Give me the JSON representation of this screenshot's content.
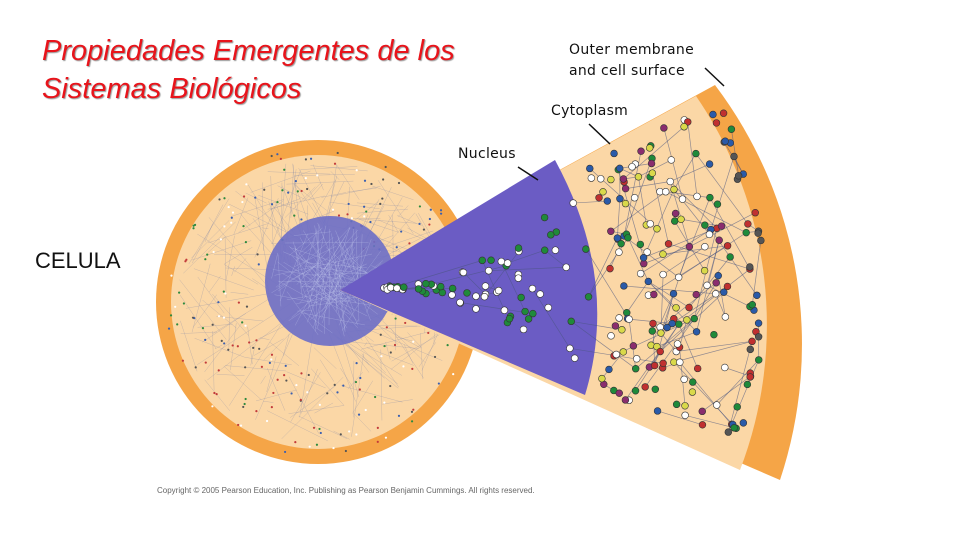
{
  "title": {
    "line1": "Propiedades Emergentes de los",
    "line2": "Sistemas Biológicos"
  },
  "labels": {
    "outer_membrane_line1": "Outer membrane",
    "outer_membrane_line2": "and cell surface",
    "cytoplasm": "Cytoplasm",
    "nucleus": "Nucleus",
    "cell": "CELULA"
  },
  "copyright": "Copyright © 2005 Pearson Education, Inc. Publishing as Pearson Benjamin Cummings. All rights reserved.",
  "colors": {
    "membrane": "#f5a547",
    "cytoplasm": "#fbd7a6",
    "nucleus": "#6b5cc4",
    "title": "#e8141b"
  }
}
